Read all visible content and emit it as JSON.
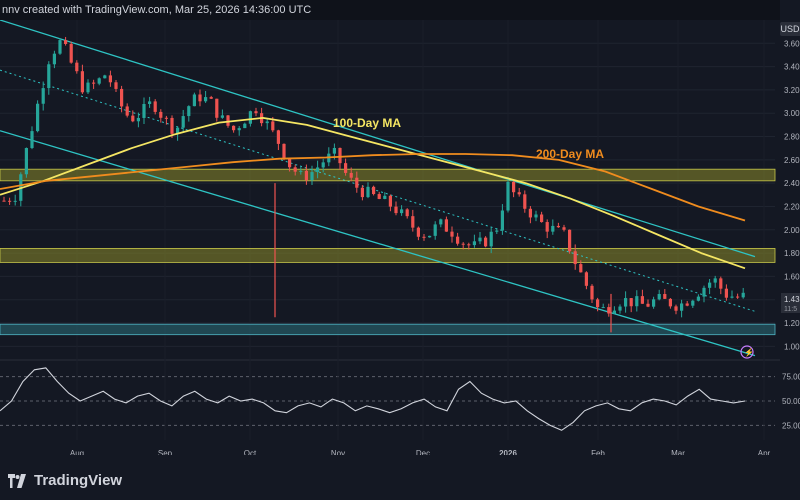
{
  "attribution": "nnv created with TradingView.com, Mar 25, 2026 14:36:00 UTC",
  "currency_badge": "USD",
  "brand": "TradingView",
  "colors": {
    "up": "#26a69a",
    "down": "#ef5350",
    "ma100": "#f5e663",
    "ma200": "#f08c1e",
    "channel": "#2ec4c4",
    "zone_upper": "#8a8a2a",
    "zone_lower": "#2a6f7a",
    "rsi": "#d1d4dc"
  },
  "chart_data": [
    {
      "type": "candlestick",
      "title": "",
      "ylabel": "",
      "ylim": [
        0.9,
        3.8
      ],
      "y_ticks": [
        "3.60",
        "3.40",
        "3.20",
        "3.00",
        "2.80",
        "2.60",
        "2.40",
        "2.20",
        "2.00",
        "1.80",
        "1.60",
        "1.40",
        "1.20",
        "1.00"
      ],
      "last_price_label": "1.43",
      "countdown_label": "11:5",
      "x_ticks": [
        "Aug",
        "Sep",
        "Oct",
        "Nov",
        "Dec",
        "2026",
        "Feb",
        "Mar",
        "Apr"
      ],
      "series": [
        {
          "name": "100-Day MA",
          "values": [
            2.3,
            2.42,
            2.56,
            2.7,
            2.82,
            2.92,
            2.96,
            2.9,
            2.8,
            2.7,
            2.6,
            2.5,
            2.4,
            2.27,
            2.12,
            1.96,
            1.8,
            1.67
          ]
        },
        {
          "name": "200-Day MA",
          "values": [
            2.35,
            2.42,
            2.46,
            2.5,
            2.54,
            2.58,
            2.61,
            2.62,
            2.64,
            2.65,
            2.65,
            2.64,
            2.6,
            2.5,
            2.35,
            2.2,
            2.08
          ]
        }
      ],
      "zones": [
        {
          "from": 2.42,
          "to": 2.52
        },
        {
          "from": 1.72,
          "to": 1.84
        },
        {
          "from": 1.1,
          "to": 1.19
        }
      ],
      "price_path": [
        2.25,
        2.3,
        2.7,
        3.1,
        3.5,
        3.62,
        3.4,
        3.2,
        3.25,
        3.35,
        3.1,
        2.95,
        3.0,
        3.1,
        2.95,
        2.85,
        3.05,
        3.15,
        3.1,
        2.95,
        2.85,
        2.95,
        3.05,
        2.9,
        2.75,
        2.55,
        2.45,
        2.5,
        2.6,
        2.65,
        2.45,
        2.35,
        2.3,
        2.25,
        2.2,
        2.1,
        2.0,
        1.95,
        2.05,
        2.0,
        1.9,
        1.85,
        1.9,
        2.0,
        2.38,
        2.25,
        2.15,
        2.05,
        2.0,
        1.95,
        1.7,
        1.5,
        1.3,
        1.35,
        1.4,
        1.38,
        1.35,
        1.4,
        1.38,
        1.35,
        1.42,
        1.5,
        1.58,
        1.45,
        1.42,
        1.43
      ]
    },
    {
      "type": "line",
      "title": "",
      "ylabel": "",
      "ylim": [
        10,
        90
      ],
      "y_ticks": [
        "75.00",
        "50.00",
        "25.00"
      ],
      "series": [
        {
          "name": "",
          "values": [
            40,
            50,
            70,
            82,
            84,
            70,
            58,
            50,
            55,
            60,
            52,
            48,
            55,
            58,
            50,
            45,
            55,
            60,
            52,
            48,
            55,
            50,
            52,
            48,
            40,
            38,
            45,
            48,
            44,
            52,
            48,
            40,
            45,
            42,
            38,
            42,
            48,
            52,
            44,
            40,
            62,
            70,
            58,
            52,
            48,
            50,
            40,
            32,
            25,
            20,
            28,
            40,
            45,
            48,
            42,
            40,
            48,
            52,
            50,
            46,
            55,
            62,
            52,
            50,
            48,
            50
          ]
        }
      ]
    }
  ],
  "annotations": {
    "ma100_label": "100-Day MA",
    "ma200_label": "200-Day MA"
  }
}
